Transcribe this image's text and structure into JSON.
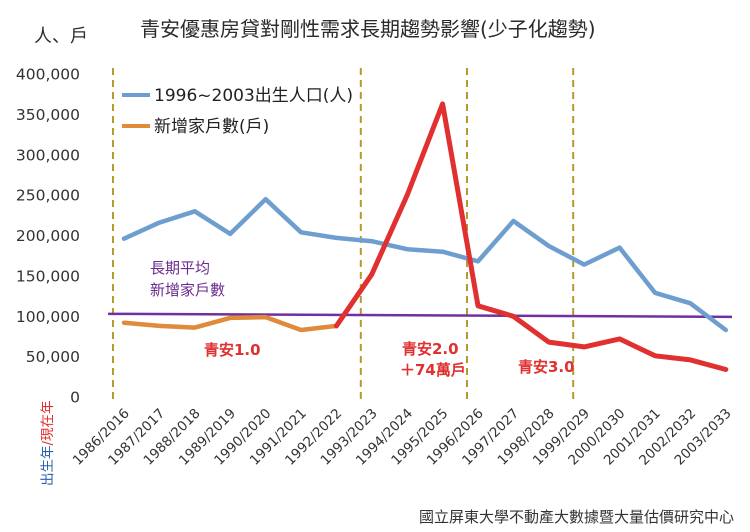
{
  "chart_data": {
    "type": "line",
    "title": "青安優惠房貸對剛性需求長期趨勢影響(少子化趨勢)",
    "unit_label": "人、戶",
    "source": "國立屏東大學不動產大數據暨大量估價研究中心",
    "xlabel_parts": {
      "birth": "出生年",
      "sep": "/",
      "now": "現在年"
    },
    "ylim": [
      0,
      400000
    ],
    "yticks": [
      "0",
      "50,000",
      "100,000",
      "150,000",
      "200,000",
      "250,000",
      "300,000",
      "350,000",
      "400,000"
    ],
    "ytick_values": [
      0,
      50000,
      100000,
      150000,
      200000,
      250000,
      300000,
      350000,
      400000
    ],
    "categories": [
      "1986/2016",
      "1987/2017",
      "1988/2018",
      "1989/2019",
      "1990/2020",
      "1991/2021",
      "1992/2022",
      "1993/2023",
      "1994/2024",
      "1995/2025",
      "1996/2026",
      "1997/2027",
      "1998/2028",
      "1999/2029",
      "2000/2030",
      "2001/2031",
      "2002/2032",
      "2003/2033"
    ],
    "series": [
      {
        "name": "1996~2003出生人口(人)",
        "color": "#6e9ecf",
        "values": [
          196000,
          216000,
          230000,
          202000,
          245000,
          204000,
          197000,
          193000,
          183000,
          180000,
          168000,
          218000,
          187000,
          164000,
          185000,
          129000,
          116000,
          83000
        ]
      },
      {
        "name": "新增家戶數(戶)",
        "color": "#e08a3c",
        "values": [
          92000,
          88000,
          86000,
          98000,
          99000,
          83000,
          88000,
          null,
          null,
          null,
          null,
          null,
          null,
          null,
          null,
          null,
          null,
          null
        ]
      },
      {
        "name": "",
        "color": "#e03030",
        "values": [
          null,
          null,
          null,
          null,
          null,
          null,
          88000,
          152000,
          250000,
          363000,
          113000,
          100000,
          68000,
          62000,
          72000,
          51000,
          46000,
          34000
        ]
      }
    ],
    "reference_line": {
      "value": 103000,
      "color": "#7030a0",
      "label_line1": "長期平均",
      "label_line2": "新增家戶數"
    },
    "annotations": {
      "phase1": "青安1.0",
      "phase2_line1": "青安2.0",
      "phase2_line2": "＋74萬戶",
      "phase3": "青安3.0"
    },
    "separators_after_category_index": [
      0,
      7,
      10,
      13
    ],
    "separator_color": "#b39b2e",
    "grid": false,
    "legend_position": "top-left"
  }
}
